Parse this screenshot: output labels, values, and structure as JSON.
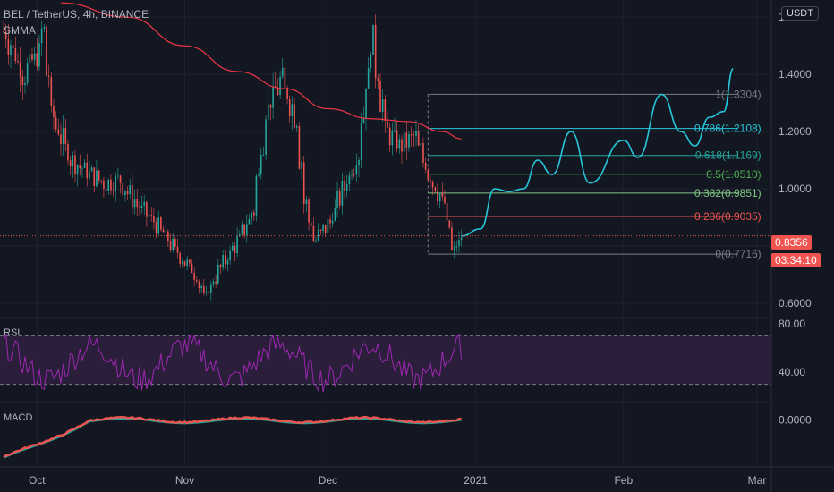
{
  "header": {
    "symbol_line": "BEL / TetherUS, 4h, BINANCE",
    "indicator": "SMMA"
  },
  "currency_button": "USDT",
  "panes": {
    "rsi_label": "RSI",
    "macd_label": "MACD"
  },
  "last_price": "0.8356",
  "countdown": "03:34:10",
  "colors": {
    "background": "#131722",
    "grid": "#1e222d",
    "up": "#26a69a",
    "down": "#ef5350",
    "smma": "#f23645",
    "projection": "#26c6da",
    "rsi": "#9c27b0",
    "rsi_band": "#2a1e3a",
    "macd": "#ef5350",
    "signal": "#26a69a",
    "last_price": "#ef5350"
  },
  "chart_data": [
    {
      "type": "candlestick",
      "pane": "price",
      "y_axis_ticks": [
        "1.6000",
        "1.4000",
        "1.2000",
        "1.0000",
        "0.8000",
        "0.6000"
      ],
      "y_tick_values": [
        1.6,
        1.4,
        1.2,
        1.0,
        0.8,
        0.6
      ],
      "x_axis_ticks": [
        "Oct",
        "Nov",
        "Dec",
        "2021",
        "Feb",
        "Mar"
      ],
      "ylim": [
        0.55,
        1.66
      ],
      "price_path": [
        [
          "2020-09-24",
          1.55
        ],
        [
          "2020-09-28",
          1.4
        ],
        [
          "2020-10-01",
          1.47
        ],
        [
          "2020-10-02",
          1.55
        ],
        [
          "2020-10-04",
          1.25
        ],
        [
          "2020-10-08",
          1.1
        ],
        [
          "2020-10-12",
          1.05
        ],
        [
          "2020-10-15",
          1.02
        ],
        [
          "2020-10-18",
          1.03
        ],
        [
          "2020-10-22",
          0.94
        ],
        [
          "2020-10-26",
          0.87
        ],
        [
          "2020-10-30",
          0.78
        ],
        [
          "2020-11-03",
          0.7
        ],
        [
          "2020-11-05",
          0.62
        ],
        [
          "2020-11-08",
          0.72
        ],
        [
          "2020-11-12",
          0.82
        ],
        [
          "2020-11-15",
          0.92
        ],
        [
          "2020-11-18",
          1.28
        ],
        [
          "2020-11-21",
          1.38
        ],
        [
          "2020-11-24",
          1.25
        ],
        [
          "2020-11-26",
          0.95
        ],
        [
          "2020-11-28",
          0.82
        ],
        [
          "2020-12-01",
          0.88
        ],
        [
          "2020-12-04",
          1.0
        ],
        [
          "2020-12-07",
          1.12
        ],
        [
          "2020-12-10",
          1.52
        ],
        [
          "2020-12-13",
          1.2
        ],
        [
          "2020-12-16",
          1.15
        ],
        [
          "2020-12-19",
          1.18
        ],
        [
          "2020-12-22",
          1.05
        ],
        [
          "2020-12-25",
          0.95
        ],
        [
          "2020-12-27",
          0.78
        ],
        [
          "2020-12-29",
          0.8356
        ]
      ],
      "smma_path": [
        [
          "2020-10-06",
          1.65
        ],
        [
          "2020-10-20",
          1.6
        ],
        [
          "2020-11-01",
          1.5
        ],
        [
          "2020-11-12",
          1.41
        ],
        [
          "2020-11-22",
          1.35
        ],
        [
          "2020-12-01",
          1.28
        ],
        [
          "2020-12-10",
          1.245
        ],
        [
          "2020-12-18",
          1.235
        ],
        [
          "2020-12-25",
          1.2
        ],
        [
          "2020-12-29",
          1.175
        ]
      ],
      "fibonacci": [
        {
          "label": "1(1.3304)",
          "level": 1.3304,
          "color": "#787b86"
        },
        {
          "label": "0.786(1.2108)",
          "level": 1.2108,
          "color": "#26c6da"
        },
        {
          "label": "0.618(1.1169)",
          "level": 1.1169,
          "color": "#26a69a"
        },
        {
          "label": "0.5(1.0510)",
          "level": 1.051,
          "color": "#4caf50"
        },
        {
          "label": "0.382(0.9851)",
          "level": 0.9851,
          "color": "#81c784"
        },
        {
          "label": "0.236(0.9035)",
          "level": 0.9035,
          "color": "#ef5350"
        },
        {
          "label": "0(0.7716)",
          "level": 0.7716,
          "color": "#787b86"
        }
      ],
      "projection_path": [
        [
          "2020-12-29",
          0.835
        ],
        [
          "2021-01-02",
          0.86
        ],
        [
          "2021-01-05",
          1.0
        ],
        [
          "2021-01-08",
          0.99
        ],
        [
          "2021-01-11",
          1.0
        ],
        [
          "2021-01-14",
          1.1
        ],
        [
          "2021-01-17",
          1.05
        ],
        [
          "2021-01-21",
          1.2
        ],
        [
          "2021-01-25",
          1.02
        ],
        [
          "2021-02-01",
          1.17
        ],
        [
          "2021-02-04",
          1.11
        ],
        [
          "2021-02-09",
          1.33
        ],
        [
          "2021-02-13",
          1.2
        ],
        [
          "2021-02-16",
          1.15
        ],
        [
          "2021-02-19",
          1.25
        ],
        [
          "2021-02-22",
          1.27
        ],
        [
          "2021-02-24",
          1.42
        ]
      ]
    },
    {
      "type": "line",
      "pane": "rsi",
      "y_axis_ticks": [
        "80.00",
        "40.00"
      ],
      "y_tick_values": [
        80,
        40
      ],
      "band": [
        30,
        70
      ],
      "ylim": [
        15,
        85
      ]
    },
    {
      "type": "line",
      "pane": "macd",
      "y_axis_ticks": [
        "0.0000"
      ],
      "y_tick_values": [
        0
      ],
      "ylim": [
        -0.12,
        0.04
      ]
    }
  ]
}
